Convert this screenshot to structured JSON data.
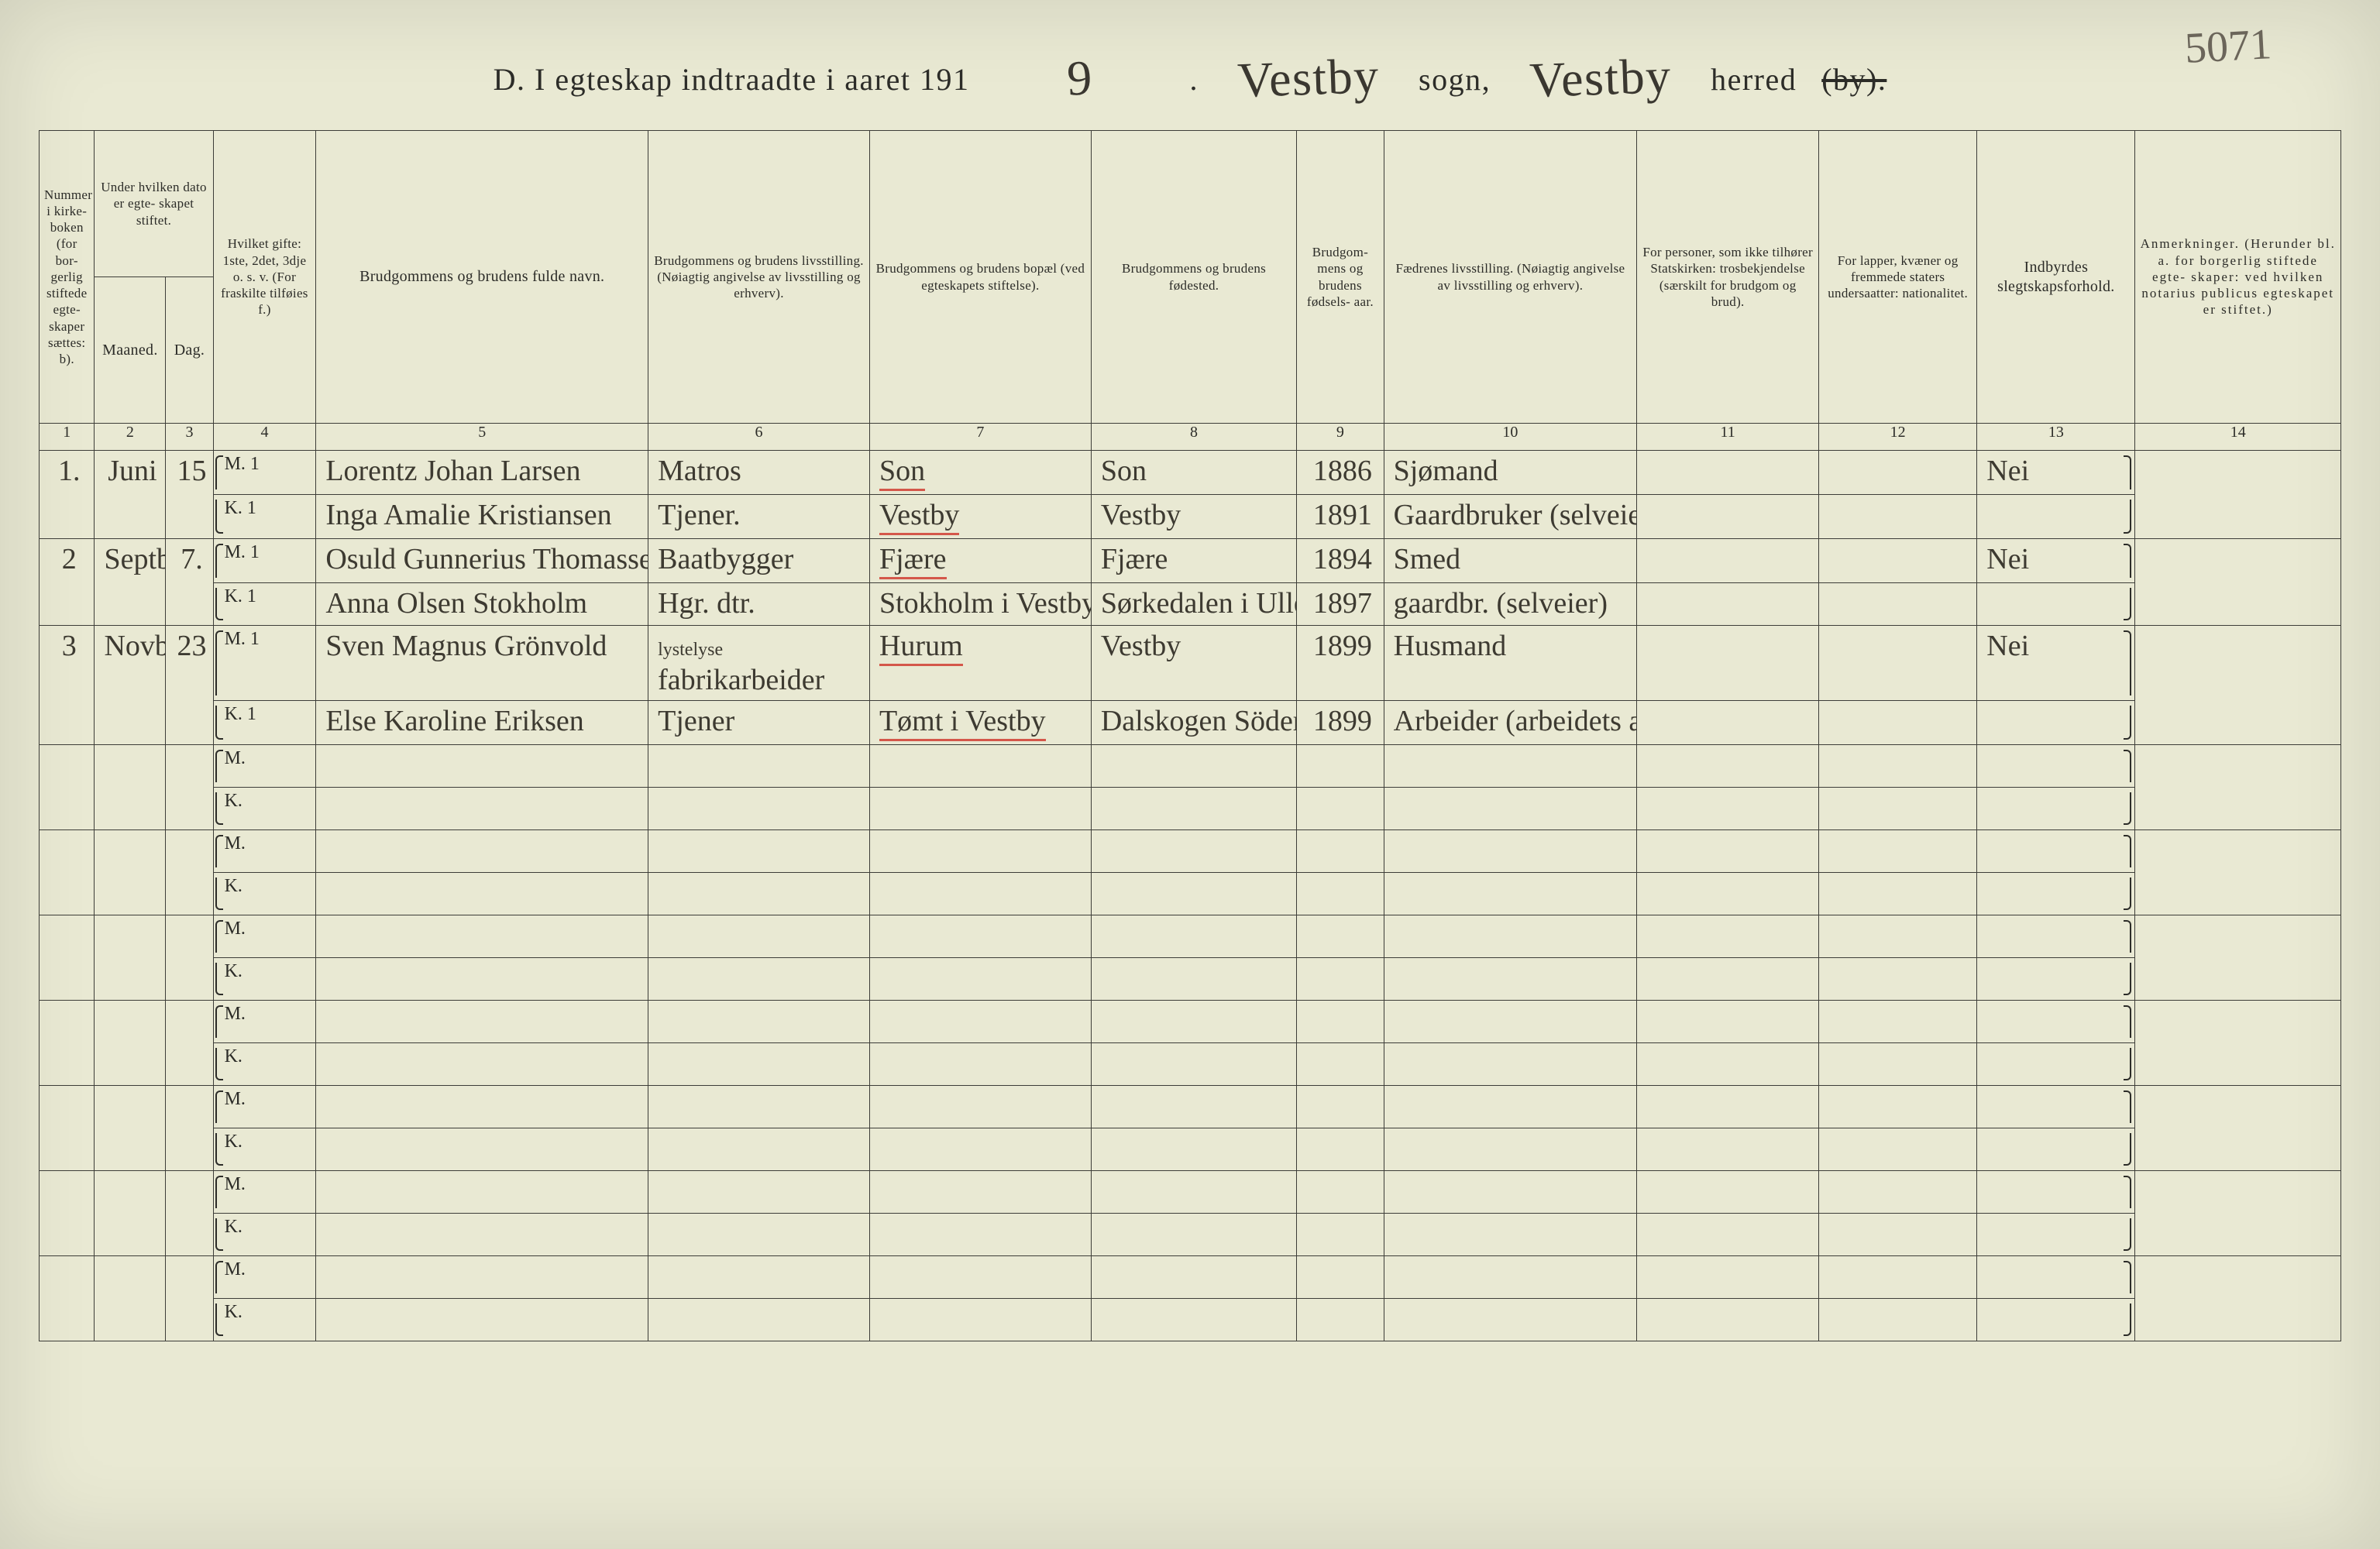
{
  "folio": "5071",
  "title": {
    "prefix": "D.  I egteskap indtraadte i aaret 191",
    "year_hand": "9",
    "sogn_hand": "Vestby",
    "sogn_label": "sogn,",
    "herred_hand": "Vestby",
    "herred_label": "herred",
    "herred_struck": "(by)."
  },
  "headers": {
    "c1": "Nummer i kirke- boken (for bor- gerlig stiftede egte- skaper sættes: b).",
    "c2_3_top": "Under hvilken dato er egte- skapet stiftet.",
    "c2_sub": "Maaned.",
    "c3_sub": "Dag.",
    "c4": "Hvilket gifte: 1ste, 2det, 3dje o. s. v. (For fraskilte tilføies f.)",
    "c5": "Brudgommens og brudens fulde navn.",
    "c6": "Brudgommens og brudens livsstilling. (Nøiagtig angivelse av livsstilling og erhverv).",
    "c7": "Brudgommens og brudens bopæl (ved egteskapets stiftelse).",
    "c8": "Brudgommens og brudens fødested.",
    "c9": "Brudgom- mens og brudens fødsels- aar.",
    "c10": "Fædrenes livsstilling. (Nøiagtig angivelse av livsstilling og erhverv).",
    "c11": "For personer, som ikke tilhører Statskirken: trosbekjendelse (særskilt for brudgom og brud).",
    "c12": "For lapper, kvæner og fremmede staters undersaatter: nationalitet.",
    "c13": "Indbyrdes slegtskapsforhold.",
    "c14": "Anmerkninger. (Herunder bl. a. for borgerlig stiftede egte- skaper: ved hvilken notarius publicus egteskapet er stiftet.)"
  },
  "colnums": [
    "1",
    "2",
    "3",
    "4",
    "5",
    "6",
    "7",
    "8",
    "9",
    "10",
    "11",
    "12",
    "13",
    "14"
  ],
  "mk": {
    "m": "M.",
    "k": "K."
  },
  "entries": [
    {
      "no": "1.",
      "month": "Juni",
      "day": "15",
      "rel": "Nei",
      "m": {
        "gifte": "1",
        "name": "Lorentz Johan Larsen",
        "occ": "Matros",
        "residence": "Son",
        "residence_red": true,
        "birthplace": "Son",
        "year": "1886",
        "father": "Sjømand"
      },
      "k": {
        "gifte": "1",
        "name": "Inga Amalie Kristiansen",
        "occ": "Tjener.",
        "residence": "Vestby",
        "residence_red": true,
        "birthplace": "Vestby",
        "year": "1891",
        "father": "Gaardbruker (selveier)"
      }
    },
    {
      "no": "2",
      "month": "Septbr.",
      "day": "7.",
      "rel": "Nei",
      "m": {
        "gifte": "1",
        "name": "Osuld Gunnerius Thomassen",
        "occ": "Baatbygger",
        "residence": "Fjære",
        "residence_red": true,
        "birthplace": "Fjære",
        "year": "1894",
        "father": "Smed"
      },
      "k": {
        "gifte": "1",
        "name": "Anna Olsen Stokholm",
        "occ": "Hgr. dtr.",
        "residence": "Stokholm i Vestby",
        "residence_red": false,
        "birthplace": "Sørkedalen i Ullern (V. Aker)",
        "year": "1897",
        "father": "gaardbr. (selveier)"
      }
    },
    {
      "no": "3",
      "month": "Novbr.",
      "day": "23",
      "rel": "Nei",
      "m": {
        "gifte": "1",
        "name": "Sven Magnus Grönvold",
        "occ": "fabrikarbeider",
        "occ_note": "lystelyse",
        "residence": "Hurum",
        "residence_red": true,
        "birthplace": "Vestby",
        "year": "1899",
        "father": "Husmand"
      },
      "k": {
        "gifte": "1",
        "name": "Else Karoline Eriksen",
        "occ": "Tjener",
        "residence": "Tømt i Vestby",
        "residence_red": true,
        "birthplace": "Dalskogen Södermanl. Elfsborg län Sverige",
        "year": "1899",
        "father": "Arbeider (arbeidets art ikke opgit)"
      }
    }
  ],
  "blank_pairs": 7,
  "style": {
    "page_bg": "#e9e9d3",
    "ink": "#2c2c28",
    "handwriting": "#3d3a31",
    "red": "#d4574a",
    "border": "#3d3d38",
    "title_fontsize_pt": 30,
    "header_fontsize_pt": 15,
    "hand_fontsize_pt": 28
  }
}
